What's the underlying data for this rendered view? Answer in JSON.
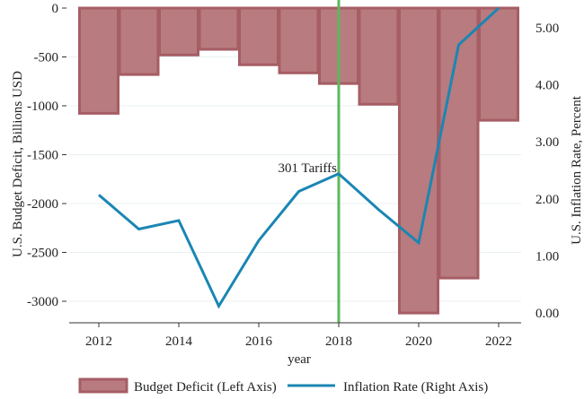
{
  "chart_data": {
    "type": "bar+line",
    "title": "",
    "xlabel": "year",
    "ylabel_left": "U.S. Budget Deficit, Billions USD",
    "ylabel_right": "U.S. Inflation Rate, Percent",
    "x": [
      2012,
      2013,
      2014,
      2015,
      2016,
      2017,
      2018,
      2019,
      2020,
      2021,
      2022
    ],
    "x_ticks": [
      "2012",
      "2014",
      "2016",
      "2018",
      "2020",
      "2022"
    ],
    "x_tick_values": [
      2012,
      2014,
      2016,
      2018,
      2020,
      2022
    ],
    "xlim": [
      2011.6,
      2022.6
    ],
    "ylim_left": [
      -3200,
      0
    ],
    "ylim_right": [
      0,
      5.35
    ],
    "y_left_ticks": [
      "0",
      "-500",
      "-1000",
      "-1500",
      "-2000",
      "-2500",
      "-3000"
    ],
    "y_left_tick_values": [
      0,
      -500,
      -1000,
      -1500,
      -2000,
      -2500,
      -3000
    ],
    "y_right_ticks": [
      "0.00",
      "1.00",
      "2.00",
      "3.00",
      "4.00",
      "5.00"
    ],
    "y_right_tick_values": [
      0,
      1,
      2,
      3,
      4,
      5
    ],
    "grid": true,
    "series": [
      {
        "name": "Budget Deficit (Left Axis)",
        "type": "bar",
        "axis": "left",
        "color": "#b87b7f",
        "edge_color": "#a65d64",
        "values": [
          -1077,
          -680,
          -480,
          -422,
          -580,
          -663,
          -772,
          -984,
          -3120,
          -2762,
          -1148
        ]
      },
      {
        "name": "Inflation Rate (Right Axis)",
        "type": "line",
        "axis": "right",
        "color": "#1a86b3",
        "values": [
          2.07,
          1.47,
          1.62,
          0.12,
          1.27,
          2.13,
          2.44,
          1.81,
          1.23,
          4.7,
          5.35
        ]
      }
    ],
    "annotations": [
      {
        "text": "301 Tariffs",
        "x": 2018,
        "type": "vertical-line",
        "color": "#5cb85c"
      }
    ],
    "legend": {
      "placement": "bottom",
      "entries": [
        "Budget Deficit (Left Axis)",
        "Inflation Rate (Right Axis)"
      ]
    }
  }
}
